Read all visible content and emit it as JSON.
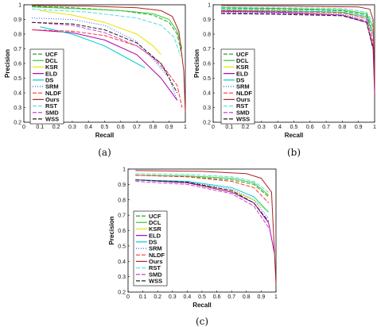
{
  "chart_data": [
    {
      "type": "line",
      "caption": "(a)",
      "xlabel": "Recall",
      "ylabel": "Precision",
      "xlim": [
        0,
        1
      ],
      "ylim": [
        0.2,
        1
      ],
      "xticks": [
        "0",
        "0.1",
        "0.2",
        "0.3",
        "0.4",
        "0.5",
        "0.6",
        "0.7",
        "0.8",
        "0.9",
        "1"
      ],
      "yticks": [
        "0.2",
        "0.3",
        "0.4",
        "0.5",
        "0.6",
        "0.7",
        "0.8",
        "0.9",
        "1"
      ],
      "grid": false,
      "legend_position": "left",
      "series": [
        {
          "name": "UCF",
          "color": "#2ca02c",
          "dash": "5,2",
          "points": [
            [
              0.05,
              0.99
            ],
            [
              0.3,
              0.98
            ],
            [
              0.6,
              0.96
            ],
            [
              0.8,
              0.93
            ],
            [
              0.9,
              0.88
            ],
            [
              0.95,
              0.8
            ],
            [
              0.98,
              0.65
            ]
          ]
        },
        {
          "name": "DCL",
          "color": "#33cc33",
          "dash": "",
          "points": [
            [
              0.05,
              0.985
            ],
            [
              0.3,
              0.975
            ],
            [
              0.6,
              0.96
            ],
            [
              0.8,
              0.94
            ],
            [
              0.9,
              0.9
            ],
            [
              0.95,
              0.82
            ],
            [
              0.98,
              0.7
            ]
          ]
        },
        {
          "name": "KSR",
          "color": "#e6e600",
          "dash": "",
          "points": [
            [
              0.1,
              0.96
            ],
            [
              0.3,
              0.93
            ],
            [
              0.5,
              0.88
            ],
            [
              0.7,
              0.8
            ],
            [
              0.8,
              0.72
            ],
            [
              0.85,
              0.66
            ]
          ]
        },
        {
          "name": "ELD",
          "color": "#b000b0",
          "dash": "",
          "points": [
            [
              0.05,
              0.83
            ],
            [
              0.3,
              0.81
            ],
            [
              0.5,
              0.76
            ],
            [
              0.7,
              0.66
            ],
            [
              0.85,
              0.5
            ],
            [
              0.95,
              0.35
            ]
          ]
        },
        {
          "name": "DS",
          "color": "#00cccc",
          "dash": "",
          "points": [
            [
              0.1,
              0.85
            ],
            [
              0.3,
              0.8
            ],
            [
              0.5,
              0.72
            ],
            [
              0.65,
              0.63
            ],
            [
              0.75,
              0.57
            ]
          ]
        },
        {
          "name": "SRM",
          "color": "#3355ff",
          "dash": "1,2",
          "points": [
            [
              0.05,
              0.91
            ],
            [
              0.3,
              0.9
            ],
            [
              0.5,
              0.86
            ],
            [
              0.7,
              0.75
            ],
            [
              0.8,
              0.63
            ],
            [
              0.9,
              0.5
            ],
            [
              0.95,
              0.35
            ]
          ]
        },
        {
          "name": "NLDF",
          "color": "#ff3333",
          "dash": "5,2",
          "points": [
            [
              0.05,
              0.83
            ],
            [
              0.3,
              0.82
            ],
            [
              0.5,
              0.79
            ],
            [
              0.7,
              0.72
            ],
            [
              0.85,
              0.6
            ],
            [
              0.95,
              0.45
            ],
            [
              0.98,
              0.3
            ]
          ]
        },
        {
          "name": "Ours",
          "color": "#b22222",
          "dash": "",
          "points": [
            [
              0.05,
              0.995
            ],
            [
              0.4,
              0.99
            ],
            [
              0.7,
              0.98
            ],
            [
              0.85,
              0.96
            ],
            [
              0.92,
              0.92
            ],
            [
              0.96,
              0.82
            ],
            [
              0.99,
              0.55
            ],
            [
              1.0,
              0.27
            ]
          ]
        },
        {
          "name": "RST",
          "color": "#55dddd",
          "dash": "5,2",
          "points": [
            [
              0.05,
              0.97
            ],
            [
              0.4,
              0.95
            ],
            [
              0.7,
              0.91
            ],
            [
              0.85,
              0.86
            ],
            [
              0.93,
              0.78
            ],
            [
              0.97,
              0.65
            ]
          ]
        },
        {
          "name": "SMD",
          "color": "#cc44cc",
          "dash": "5,2",
          "points": [
            [
              0.05,
              0.88
            ],
            [
              0.3,
              0.86
            ],
            [
              0.5,
              0.81
            ],
            [
              0.7,
              0.72
            ],
            [
              0.8,
              0.64
            ],
            [
              0.9,
              0.52
            ]
          ]
        },
        {
          "name": "WSS",
          "color": "#222222",
          "dash": "5,2",
          "points": [
            [
              0.05,
              0.88
            ],
            [
              0.3,
              0.87
            ],
            [
              0.5,
              0.83
            ],
            [
              0.7,
              0.74
            ],
            [
              0.85,
              0.6
            ],
            [
              0.95,
              0.4
            ]
          ]
        }
      ]
    },
    {
      "type": "line",
      "caption": "(b)",
      "xlabel": "Recall",
      "ylabel": "Precision",
      "xlim": [
        0,
        1
      ],
      "ylim": [
        0.2,
        1
      ],
      "xticks": [
        "0",
        "0.1",
        "0.2",
        "0.3",
        "0.4",
        "0.5",
        "0.6",
        "0.7",
        "0.8",
        "0.9",
        "1"
      ],
      "yticks": [
        "0.2",
        "0.3",
        "0.4",
        "0.5",
        "0.6",
        "0.7",
        "0.8",
        "0.9",
        "1"
      ],
      "grid": false,
      "legend_position": "left",
      "series": [
        {
          "name": "UCF",
          "color": "#2ca02c",
          "dash": "5,2",
          "points": [
            [
              0.05,
              0.975
            ],
            [
              0.4,
              0.97
            ],
            [
              0.8,
              0.96
            ],
            [
              0.95,
              0.93
            ],
            [
              0.99,
              0.82
            ]
          ]
        },
        {
          "name": "DCL",
          "color": "#33cc33",
          "dash": "",
          "points": [
            [
              0.05,
              0.98
            ],
            [
              0.4,
              0.975
            ],
            [
              0.8,
              0.965
            ],
            [
              0.95,
              0.94
            ],
            [
              0.99,
              0.85
            ]
          ]
        },
        {
          "name": "KSR",
          "color": "#e6e600",
          "dash": "",
          "points": [
            [
              0.05,
              0.96
            ],
            [
              0.4,
              0.955
            ],
            [
              0.8,
              0.945
            ],
            [
              0.95,
              0.91
            ],
            [
              0.99,
              0.82
            ]
          ]
        },
        {
          "name": "ELD",
          "color": "#b000b0",
          "dash": "",
          "points": [
            [
              0.05,
              0.955
            ],
            [
              0.4,
              0.95
            ],
            [
              0.8,
              0.93
            ],
            [
              0.95,
              0.88
            ],
            [
              0.99,
              0.72
            ],
            [
              1.0,
              0.4
            ]
          ]
        },
        {
          "name": "DS",
          "color": "#00cccc",
          "dash": "",
          "points": [
            [
              0.05,
              0.965
            ],
            [
              0.4,
              0.96
            ],
            [
              0.8,
              0.95
            ],
            [
              0.95,
              0.92
            ],
            [
              0.99,
              0.8
            ]
          ]
        },
        {
          "name": "SRM",
          "color": "#3355ff",
          "dash": "1,2",
          "points": [
            [
              0.05,
              0.95
            ],
            [
              0.4,
              0.945
            ],
            [
              0.8,
              0.935
            ],
            [
              0.95,
              0.9
            ],
            [
              0.99,
              0.78
            ]
          ]
        },
        {
          "name": "NLDF",
          "color": "#ff3333",
          "dash": "5,2",
          "points": [
            [
              0.05,
              0.96
            ],
            [
              0.4,
              0.955
            ],
            [
              0.8,
              0.945
            ],
            [
              0.95,
              0.91
            ],
            [
              0.99,
              0.75
            ]
          ]
        },
        {
          "name": "Ours",
          "color": "#b22222",
          "dash": "",
          "points": [
            [
              0.05,
              0.995
            ],
            [
              0.5,
              0.99
            ],
            [
              0.9,
              0.985
            ],
            [
              0.97,
              0.97
            ],
            [
              0.99,
              0.9
            ],
            [
              1.0,
              0.45
            ]
          ]
        },
        {
          "name": "RST",
          "color": "#55dddd",
          "dash": "5,2",
          "points": [
            [
              0.05,
              0.985
            ],
            [
              0.4,
              0.98
            ],
            [
              0.8,
              0.975
            ],
            [
              0.95,
              0.95
            ],
            [
              0.99,
              0.88
            ]
          ]
        },
        {
          "name": "SMD",
          "color": "#cc44cc",
          "dash": "5,2",
          "points": [
            [
              0.05,
              0.945
            ],
            [
              0.4,
              0.94
            ],
            [
              0.8,
              0.93
            ],
            [
              0.95,
              0.89
            ],
            [
              0.99,
              0.7
            ]
          ]
        },
        {
          "name": "WSS",
          "color": "#222222",
          "dash": "5,2",
          "points": [
            [
              0.05,
              0.94
            ],
            [
              0.4,
              0.935
            ],
            [
              0.8,
              0.925
            ],
            [
              0.95,
              0.88
            ],
            [
              0.99,
              0.7
            ]
          ]
        }
      ]
    },
    {
      "type": "line",
      "caption": "(c)",
      "xlabel": "Recall",
      "ylabel": "Precision",
      "xlim": [
        0,
        1
      ],
      "ylim": [
        0.2,
        1
      ],
      "xticks": [
        "0",
        "0.1",
        "0.2",
        "0.3",
        "0.4",
        "0.5",
        "0.6",
        "0.7",
        "0.8",
        "0.9",
        "1"
      ],
      "yticks": [
        "0.2",
        "0.3",
        "0.4",
        "0.5",
        "0.6",
        "0.7",
        "0.8",
        "0.9",
        "1"
      ],
      "grid": false,
      "legend_position": "left",
      "series": [
        {
          "name": "UCF",
          "color": "#2ca02c",
          "dash": "5,2",
          "points": [
            [
              0.05,
              0.96
            ],
            [
              0.4,
              0.95
            ],
            [
              0.7,
              0.93
            ],
            [
              0.85,
              0.9
            ],
            [
              0.95,
              0.82
            ]
          ]
        },
        {
          "name": "DCL",
          "color": "#33cc33",
          "dash": "",
          "points": [
            [
              0.05,
              0.96
            ],
            [
              0.4,
              0.955
            ],
            [
              0.7,
              0.94
            ],
            [
              0.85,
              0.91
            ],
            [
              0.95,
              0.83
            ]
          ]
        },
        {
          "name": "KSR",
          "color": "#e6e600",
          "dash": "",
          "points": [
            [
              0.1,
              0.93
            ],
            [
              0.4,
              0.91
            ],
            [
              0.7,
              0.86
            ],
            [
              0.85,
              0.8
            ],
            [
              0.95,
              0.72
            ]
          ]
        },
        {
          "name": "ELD",
          "color": "#b000b0",
          "dash": "",
          "points": [
            [
              0.05,
              0.93
            ],
            [
              0.4,
              0.91
            ],
            [
              0.7,
              0.85
            ],
            [
              0.85,
              0.78
            ],
            [
              0.95,
              0.65
            ],
            [
              0.99,
              0.45
            ]
          ]
        },
        {
          "name": "DS",
          "color": "#00cccc",
          "dash": "",
          "points": [
            [
              0.05,
              0.93
            ],
            [
              0.4,
              0.92
            ],
            [
              0.7,
              0.88
            ],
            [
              0.85,
              0.82
            ],
            [
              0.95,
              0.72
            ]
          ]
        },
        {
          "name": "SRM",
          "color": "#3355ff",
          "dash": "1,2",
          "points": [
            [
              0.05,
              0.93
            ],
            [
              0.4,
              0.915
            ],
            [
              0.7,
              0.87
            ],
            [
              0.85,
              0.8
            ],
            [
              0.95,
              0.68
            ]
          ]
        },
        {
          "name": "NLDF",
          "color": "#ff3333",
          "dash": "5,2",
          "points": [
            [
              0.05,
              0.96
            ],
            [
              0.4,
              0.95
            ],
            [
              0.7,
              0.92
            ],
            [
              0.85,
              0.88
            ],
            [
              0.95,
              0.78
            ]
          ]
        },
        {
          "name": "Ours",
          "color": "#b22222",
          "dash": "",
          "points": [
            [
              0.05,
              0.99
            ],
            [
              0.5,
              0.985
            ],
            [
              0.8,
              0.97
            ],
            [
              0.9,
              0.94
            ],
            [
              0.97,
              0.85
            ],
            [
              1.0,
              0.25
            ]
          ]
        },
        {
          "name": "RST",
          "color": "#55dddd",
          "dash": "5,2",
          "points": [
            [
              0.05,
              0.97
            ],
            [
              0.4,
              0.965
            ],
            [
              0.7,
              0.95
            ],
            [
              0.85,
              0.92
            ],
            [
              0.95,
              0.85
            ]
          ]
        },
        {
          "name": "SMD",
          "color": "#cc44cc",
          "dash": "5,2",
          "points": [
            [
              0.05,
              0.92
            ],
            [
              0.4,
              0.9
            ],
            [
              0.7,
              0.84
            ],
            [
              0.85,
              0.76
            ],
            [
              0.95,
              0.62
            ]
          ]
        },
        {
          "name": "WSS",
          "color": "#222222",
          "dash": "5,2",
          "points": [
            [
              0.05,
              0.93
            ],
            [
              0.4,
              0.915
            ],
            [
              0.7,
              0.86
            ],
            [
              0.85,
              0.78
            ],
            [
              0.95,
              0.66
            ]
          ]
        }
      ]
    }
  ]
}
